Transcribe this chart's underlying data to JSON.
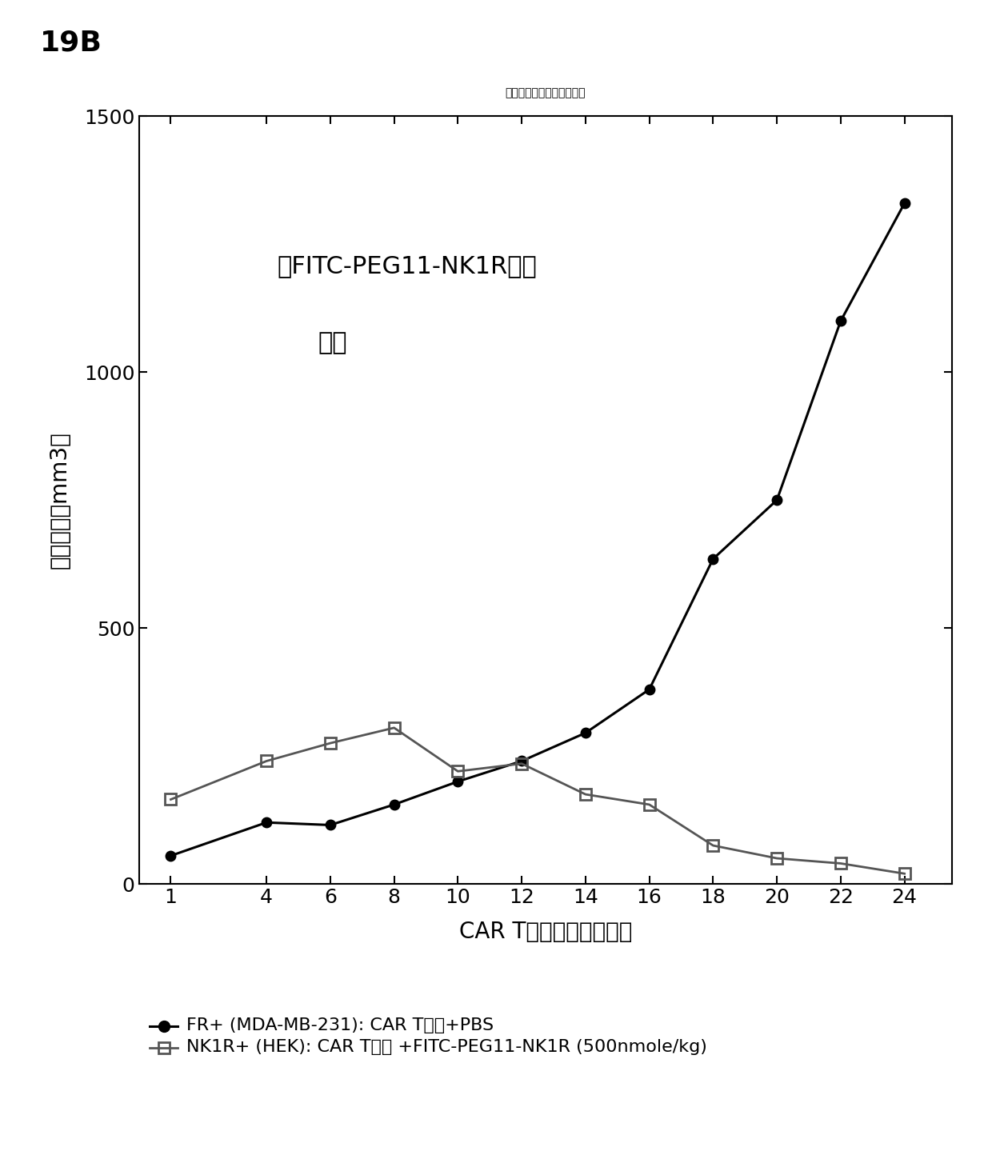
{
  "title": "同一小鼠中的两种不同肿瘴",
  "annotation_line1": "用FITC-PEG11-NK1R适体",
  "annotation_line2": "治疗",
  "xlabel": "CAR T细胞注射后的天数",
  "ylabel": "肿瘴体积（mm3）",
  "panel_label": "19B",
  "xlim": [
    0,
    25.5
  ],
  "ylim": [
    0,
    1500
  ],
  "xticks": [
    1,
    4,
    6,
    8,
    10,
    12,
    14,
    16,
    18,
    20,
    22,
    24
  ],
  "yticks": [
    0,
    500,
    1000,
    1500
  ],
  "series1_x": [
    1,
    4,
    6,
    8,
    10,
    12,
    14,
    16,
    18,
    20,
    22,
    24
  ],
  "series1_y": [
    55,
    120,
    115,
    155,
    200,
    240,
    295,
    380,
    635,
    750,
    1100,
    1330
  ],
  "series1_color": "#000000",
  "series1_label": "FR+ (MDA-MB-231): CAR T细胞+PBS",
  "series2_x": [
    1,
    4,
    6,
    8,
    10,
    12,
    14,
    16,
    18,
    20,
    22,
    24
  ],
  "series2_y": [
    165,
    240,
    275,
    305,
    220,
    235,
    175,
    155,
    75,
    50,
    40,
    20
  ],
  "series2_color": "#555555",
  "series2_label": "NK1R+ (HEK): CAR T细胞 +FITC-PEG11-NK1R (500nmole/kg)",
  "background_color": "#ffffff",
  "title_fontsize": 26,
  "axis_label_fontsize": 20,
  "tick_fontsize": 18,
  "legend_fontsize": 16,
  "annotation_fontsize": 22,
  "panel_label_fontsize": 26
}
